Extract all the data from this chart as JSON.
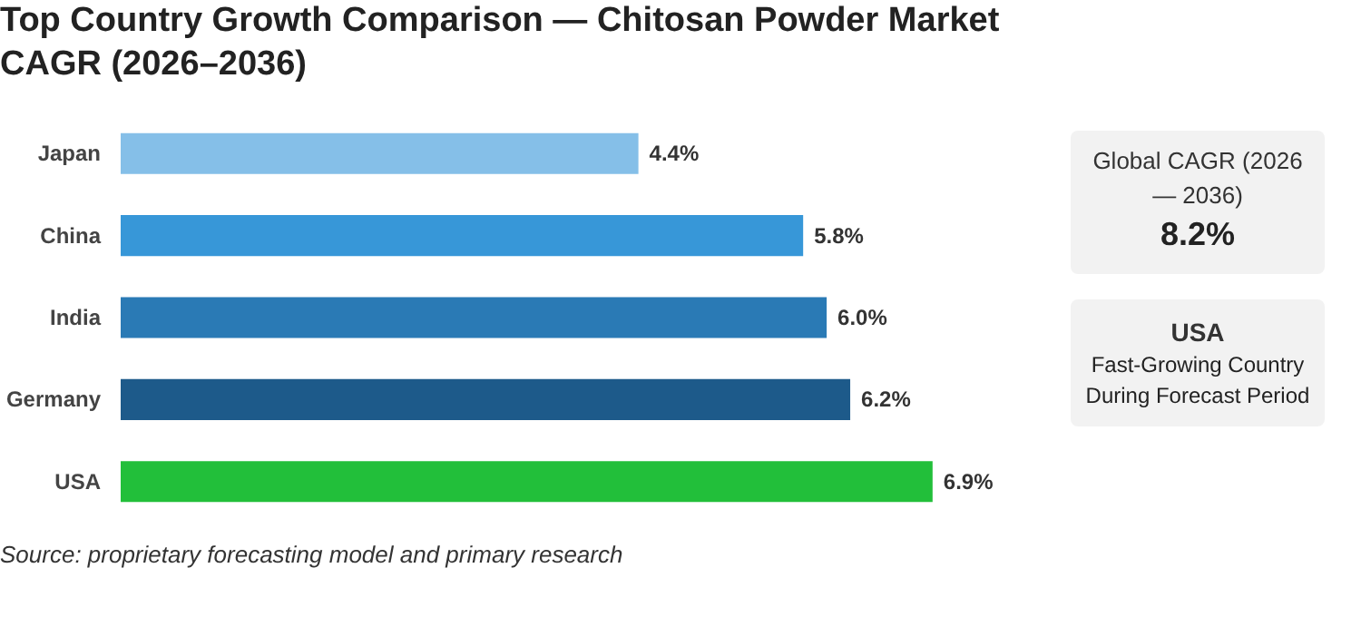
{
  "chart_data": {
    "type": "bar",
    "orientation": "horizontal",
    "title": "Top Country Growth Comparison — Chitosan Powder Market CAGR (2026–2036)",
    "categories": [
      "Japan",
      "China",
      "India",
      "Germany",
      "USA"
    ],
    "values": [
      4.4,
      5.8,
      6.0,
      6.2,
      6.9
    ],
    "colors": [
      "#85bfe8",
      "#3797d8",
      "#2a7ab5",
      "#1d5a8a",
      "#22bf3a"
    ],
    "value_labels": [
      "4.4%",
      "5.8%",
      "6.0%",
      "6.2%",
      "6.9%"
    ],
    "grid": false,
    "annotations": [
      "Global CAGR (2026 — 2036)",
      "8.2%",
      "USA",
      "Fast-Growing Country During Forecast Period",
      "Source: proprietary forecasting model and primary research"
    ]
  }
}
